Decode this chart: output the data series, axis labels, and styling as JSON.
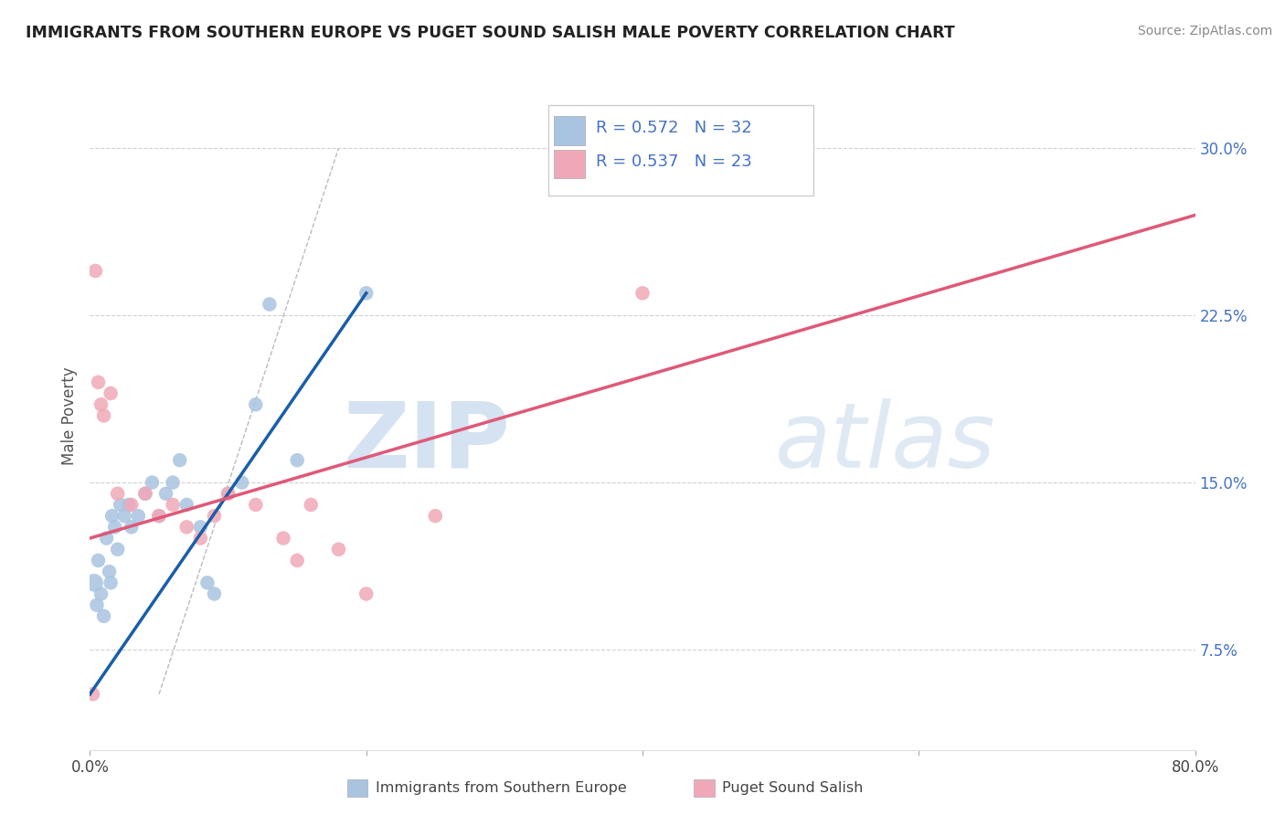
{
  "title": "IMMIGRANTS FROM SOUTHERN EUROPE VS PUGET SOUND SALISH MALE POVERTY CORRELATION CHART",
  "source": "Source: ZipAtlas.com",
  "xlabel_blue": "Immigrants from Southern Europe",
  "xlabel_pink": "Puget Sound Salish",
  "ylabel": "Male Poverty",
  "xlim": [
    0.0,
    80.0
  ],
  "ylim": [
    3.0,
    33.0
  ],
  "yticks": [
    7.5,
    15.0,
    22.5,
    30.0
  ],
  "xticks": [
    0.0,
    20.0,
    40.0,
    60.0,
    80.0
  ],
  "xtick_labels": [
    "0.0%",
    "",
    "",
    "",
    "80.0%"
  ],
  "ytick_labels": [
    "7.5%",
    "15.0%",
    "22.5%",
    "30.0%"
  ],
  "R_blue": 0.572,
  "N_blue": 32,
  "R_pink": 0.537,
  "N_pink": 23,
  "blue_color": "#a8c4e0",
  "blue_line_color": "#1a5ea8",
  "pink_color": "#f0a8b8",
  "pink_line_color": "#e05878",
  "watermark_zip": "ZIP",
  "watermark_atlas": "atlas",
  "blue_scatter_x": [
    0.3,
    0.5,
    0.6,
    0.8,
    1.0,
    1.2,
    1.4,
    1.5,
    1.6,
    1.8,
    2.0,
    2.2,
    2.5,
    2.8,
    3.0,
    3.5,
    4.0,
    4.5,
    5.0,
    5.5,
    6.0,
    6.5,
    7.0,
    8.0,
    8.5,
    9.0,
    10.0,
    11.0,
    12.0,
    13.0,
    15.0,
    20.0
  ],
  "blue_scatter_y": [
    10.5,
    9.5,
    11.5,
    10.0,
    9.0,
    12.5,
    11.0,
    10.5,
    13.5,
    13.0,
    12.0,
    14.0,
    13.5,
    14.0,
    13.0,
    13.5,
    14.5,
    15.0,
    13.5,
    14.5,
    15.0,
    16.0,
    14.0,
    13.0,
    10.5,
    10.0,
    14.5,
    15.0,
    18.5,
    23.0,
    16.0,
    23.5
  ],
  "blue_scatter_size": [
    80,
    50,
    50,
    50,
    50,
    50,
    50,
    50,
    50,
    50,
    50,
    50,
    50,
    50,
    50,
    50,
    50,
    50,
    50,
    50,
    50,
    50,
    50,
    50,
    50,
    50,
    50,
    50,
    50,
    50,
    50,
    50
  ],
  "pink_scatter_x": [
    0.2,
    0.4,
    0.6,
    0.8,
    1.0,
    1.5,
    2.0,
    3.0,
    4.0,
    5.0,
    6.0,
    7.0,
    8.0,
    9.0,
    10.0,
    12.0,
    14.0,
    15.0,
    16.0,
    18.0,
    20.0,
    25.0,
    40.0
  ],
  "pink_scatter_y": [
    5.5,
    24.5,
    19.5,
    18.5,
    18.0,
    19.0,
    14.5,
    14.0,
    14.5,
    13.5,
    14.0,
    13.0,
    12.5,
    13.5,
    14.5,
    14.0,
    12.5,
    11.5,
    14.0,
    12.0,
    10.0,
    13.5,
    23.5
  ],
  "pink_scatter_size": [
    50,
    50,
    50,
    50,
    50,
    50,
    50,
    50,
    50,
    50,
    50,
    50,
    50,
    50,
    50,
    50,
    50,
    50,
    50,
    50,
    50,
    50,
    50
  ],
  "blue_trend_x0": 0.0,
  "blue_trend_y0": 5.5,
  "blue_trend_x1": 20.0,
  "blue_trend_y1": 23.5,
  "pink_trend_x0": 0.0,
  "pink_trend_y0": 12.5,
  "pink_trend_x1": 80.0,
  "pink_trend_y1": 27.0,
  "diag_x0": 5.0,
  "diag_y0": 5.5,
  "diag_x1": 18.0,
  "diag_y1": 30.0,
  "background_color": "#ffffff",
  "grid_color": "#cccccc",
  "tick_color": "#4472c4",
  "label_color": "#666666"
}
